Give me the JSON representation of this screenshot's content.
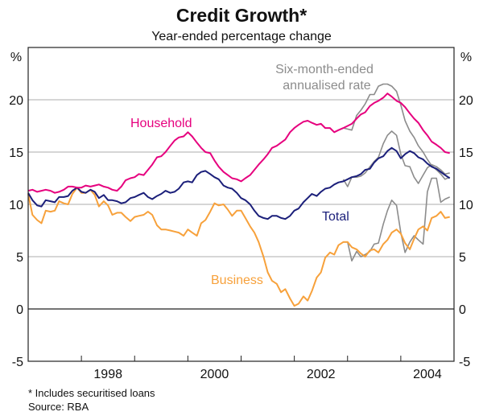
{
  "chart_data": {
    "type": "line",
    "title": "Credit Growth*",
    "subtitle": "Year-ended percentage change",
    "ylabel_left": "%",
    "ylabel_right": "%",
    "ylim": [
      -5,
      25
    ],
    "yticks": [
      -5,
      0,
      5,
      10,
      15,
      20
    ],
    "xlim": [
      1997.0,
      2005.0
    ],
    "xtick_marks": [
      1998,
      1999,
      2000,
      2001,
      2002,
      2003,
      2004
    ],
    "xtick_labels": [
      {
        "label": "1998",
        "center": 1998.5
      },
      {
        "label": "2000",
        "center": 2000.5
      },
      {
        "label": "2002",
        "center": 2002.5
      },
      {
        "label": "2004",
        "center": 2004.5
      }
    ],
    "grid": true,
    "footnote": "* Includes securitised loans",
    "source": "Source: RBA",
    "annotations": [
      {
        "text": "Household",
        "color": "#e6007e"
      },
      {
        "text": "Total",
        "color": "#1b1f7a"
      },
      {
        "text": "Business",
        "color": "#f7a13b"
      },
      {
        "text": "Six-month-ended",
        "color": "#8c8c8c"
      },
      {
        "text": "annualised rate",
        "color": "#8c8c8c"
      }
    ],
    "series": [
      {
        "name": "Household",
        "color": "#e6007e",
        "x": [
          1997.0,
          1997.08,
          1997.17,
          1997.25,
          1997.33,
          1997.42,
          1997.5,
          1997.58,
          1997.67,
          1997.75,
          1997.83,
          1997.92,
          1998.0,
          1998.08,
          1998.17,
          1998.25,
          1998.33,
          1998.42,
          1998.5,
          1998.58,
          1998.67,
          1998.75,
          1998.83,
          1998.92,
          1999.0,
          1999.08,
          1999.17,
          1999.25,
          1999.33,
          1999.42,
          1999.5,
          1999.58,
          1999.67,
          1999.75,
          1999.83,
          1999.92,
          2000.0,
          2000.08,
          2000.17,
          2000.25,
          2000.33,
          2000.42,
          2000.5,
          2000.58,
          2000.67,
          2000.75,
          2000.83,
          2000.92,
          2001.0,
          2001.08,
          2001.17,
          2001.25,
          2001.33,
          2001.42,
          2001.5,
          2001.58,
          2001.67,
          2001.75,
          2001.83,
          2001.92,
          2002.0,
          2002.08,
          2002.17,
          2002.25,
          2002.33,
          2002.42,
          2002.5,
          2002.58,
          2002.67,
          2002.75,
          2002.83,
          2002.92,
          2003.0,
          2003.08,
          2003.17,
          2003.25,
          2003.33,
          2003.42,
          2003.5,
          2003.58,
          2003.67,
          2003.75,
          2003.83,
          2003.92,
          2004.0,
          2004.08,
          2004.17,
          2004.25,
          2004.33,
          2004.42,
          2004.5,
          2004.58,
          2004.67,
          2004.75,
          2004.83,
          2004.92
        ],
        "values": [
          11.3,
          11.4,
          11.2,
          11.3,
          11.4,
          11.3,
          11.1,
          11.2,
          11.4,
          11.7,
          11.7,
          11.6,
          11.6,
          11.8,
          11.7,
          11.8,
          11.9,
          11.7,
          11.6,
          11.4,
          11.3,
          11.7,
          12.3,
          12.5,
          12.6,
          12.9,
          12.8,
          13.3,
          13.8,
          14.5,
          14.6,
          15.0,
          15.6,
          16.1,
          16.4,
          16.5,
          16.9,
          16.5,
          15.9,
          15.4,
          15.0,
          14.9,
          14.2,
          13.6,
          13.1,
          12.8,
          12.5,
          12.4,
          12.2,
          12.5,
          12.8,
          13.3,
          13.8,
          14.3,
          14.8,
          15.4,
          15.6,
          15.9,
          16.2,
          16.9,
          17.3,
          17.6,
          17.9,
          18.0,
          17.8,
          17.6,
          17.7,
          17.3,
          17.3,
          16.9,
          17.1,
          17.3,
          17.5,
          17.7,
          18.2,
          18.6,
          18.8,
          19.4,
          19.7,
          19.9,
          20.2,
          20.6,
          20.3,
          19.9,
          19.7,
          19.3,
          18.7,
          18.2,
          17.8,
          17.1,
          16.6,
          16.0,
          15.7,
          15.4,
          15.0,
          14.9
        ]
      },
      {
        "name": "Total",
        "color": "#1b1f7a",
        "x": [
          1997.0,
          1997.08,
          1997.17,
          1997.25,
          1997.33,
          1997.42,
          1997.5,
          1997.58,
          1997.67,
          1997.75,
          1997.83,
          1997.92,
          1998.0,
          1998.08,
          1998.17,
          1998.25,
          1998.33,
          1998.42,
          1998.5,
          1998.58,
          1998.67,
          1998.75,
          1998.83,
          1998.92,
          1999.0,
          1999.08,
          1999.17,
          1999.25,
          1999.33,
          1999.42,
          1999.5,
          1999.58,
          1999.67,
          1999.75,
          1999.83,
          1999.92,
          2000.0,
          2000.08,
          2000.17,
          2000.25,
          2000.33,
          2000.42,
          2000.5,
          2000.58,
          2000.67,
          2000.75,
          2000.83,
          2000.92,
          2001.0,
          2001.08,
          2001.17,
          2001.25,
          2001.33,
          2001.42,
          2001.5,
          2001.58,
          2001.67,
          2001.75,
          2001.83,
          2001.92,
          2002.0,
          2002.08,
          2002.17,
          2002.25,
          2002.33,
          2002.42,
          2002.5,
          2002.58,
          2002.67,
          2002.75,
          2002.83,
          2002.92,
          2003.0,
          2003.08,
          2003.17,
          2003.25,
          2003.33,
          2003.42,
          2003.5,
          2003.58,
          2003.67,
          2003.75,
          2003.83,
          2003.92,
          2004.0,
          2004.08,
          2004.17,
          2004.25,
          2004.33,
          2004.42,
          2004.5,
          2004.58,
          2004.67,
          2004.75,
          2004.83,
          2004.92
        ],
        "values": [
          11.1,
          10.4,
          9.9,
          9.8,
          10.4,
          10.3,
          10.2,
          10.7,
          10.7,
          10.8,
          11.3,
          11.6,
          11.2,
          11.1,
          11.4,
          11.2,
          10.6,
          10.9,
          10.4,
          10.4,
          10.3,
          10.1,
          10.2,
          10.6,
          10.7,
          10.9,
          11.1,
          10.7,
          10.5,
          10.8,
          11.0,
          11.3,
          11.1,
          11.2,
          11.5,
          12.1,
          12.2,
          12.1,
          12.8,
          13.1,
          13.2,
          12.9,
          12.6,
          12.4,
          11.8,
          11.6,
          11.5,
          11.1,
          10.6,
          10.4,
          10.0,
          9.4,
          8.9,
          8.7,
          8.6,
          8.9,
          8.9,
          8.7,
          8.6,
          8.9,
          9.4,
          9.6,
          10.2,
          10.6,
          11.0,
          10.8,
          11.2,
          11.5,
          11.6,
          11.9,
          12.1,
          12.2,
          12.4,
          12.6,
          12.7,
          12.9,
          13.3,
          13.4,
          14.0,
          14.4,
          14.6,
          15.1,
          15.4,
          15.1,
          14.4,
          14.8,
          15.1,
          14.9,
          14.5,
          14.3,
          13.9,
          13.6,
          13.4,
          13.1,
          12.8,
          12.5
        ]
      },
      {
        "name": "Business",
        "color": "#f7a13b",
        "x": [
          1997.0,
          1997.08,
          1997.17,
          1997.25,
          1997.33,
          1997.42,
          1997.5,
          1997.58,
          1997.67,
          1997.75,
          1997.83,
          1997.92,
          1998.0,
          1998.08,
          1998.17,
          1998.25,
          1998.33,
          1998.42,
          1998.5,
          1998.58,
          1998.67,
          1998.75,
          1998.83,
          1998.92,
          1999.0,
          1999.08,
          1999.17,
          1999.25,
          1999.33,
          1999.42,
          1999.5,
          1999.58,
          1999.67,
          1999.75,
          1999.83,
          1999.92,
          2000.0,
          2000.08,
          2000.17,
          2000.25,
          2000.33,
          2000.42,
          2000.5,
          2000.58,
          2000.67,
          2000.75,
          2000.83,
          2000.92,
          2001.0,
          2001.08,
          2001.17,
          2001.25,
          2001.33,
          2001.42,
          2001.5,
          2001.58,
          2001.67,
          2001.75,
          2001.83,
          2001.92,
          2002.0,
          2002.08,
          2002.17,
          2002.25,
          2002.33,
          2002.42,
          2002.5,
          2002.58,
          2002.67,
          2002.75,
          2002.83,
          2002.92,
          2003.0,
          2003.08,
          2003.17,
          2003.25,
          2003.33,
          2003.42,
          2003.5,
          2003.58,
          2003.67,
          2003.75,
          2003.83,
          2003.92,
          2004.0,
          2004.08,
          2004.17,
          2004.25,
          2004.33,
          2004.42,
          2004.5,
          2004.58,
          2004.67,
          2004.75,
          2004.83,
          2004.92
        ],
        "values": [
          11.0,
          9.0,
          8.5,
          8.2,
          9.4,
          9.3,
          9.4,
          10.3,
          10.1,
          10.0,
          11.0,
          11.6,
          11.1,
          11.1,
          11.4,
          10.9,
          9.8,
          10.3,
          9.9,
          9.0,
          9.2,
          9.2,
          8.8,
          8.4,
          8.8,
          8.9,
          9.0,
          9.3,
          9.0,
          8.0,
          7.6,
          7.6,
          7.5,
          7.4,
          7.3,
          7.0,
          7.6,
          7.3,
          7.0,
          8.2,
          8.5,
          9.3,
          10.1,
          9.9,
          10.0,
          9.5,
          8.9,
          9.4,
          9.4,
          8.7,
          7.9,
          7.3,
          6.4,
          5.0,
          3.5,
          2.7,
          2.4,
          1.6,
          1.9,
          1.0,
          0.3,
          0.5,
          1.2,
          0.8,
          1.7,
          3.0,
          3.5,
          4.9,
          5.4,
          5.2,
          6.1,
          6.4,
          6.4,
          5.9,
          5.7,
          5.3,
          5.0,
          5.6,
          5.7,
          5.4,
          6.2,
          6.6,
          7.3,
          7.6,
          7.2,
          6.3,
          5.7,
          6.7,
          7.6,
          7.9,
          7.5,
          8.7,
          8.9,
          9.3,
          8.7,
          8.8
        ]
      },
      {
        "name": "Household six-month-ended annualised",
        "color": "#8c8c8c",
        "x": [
          2002.92,
          2003.0,
          2003.08,
          2003.17,
          2003.25,
          2003.33,
          2003.42,
          2003.5,
          2003.58,
          2003.67,
          2003.75,
          2003.83,
          2003.92,
          2004.0,
          2004.08,
          2004.17,
          2004.25,
          2004.33,
          2004.42,
          2004.5,
          2004.58,
          2004.67,
          2004.75,
          2004.83,
          2004.92
        ],
        "values": [
          17.3,
          17.2,
          17.1,
          18.5,
          19.0,
          19.6,
          20.5,
          20.5,
          21.3,
          21.5,
          21.5,
          21.3,
          20.8,
          19.5,
          18.0,
          17.0,
          16.4,
          15.6,
          15.0,
          14.3,
          13.7,
          13.3,
          12.9,
          12.4,
          12.6
        ]
      },
      {
        "name": "Total six-month-ended annualised",
        "color": "#8c8c8c",
        "x": [
          2002.92,
          2003.0,
          2003.08,
          2003.17,
          2003.25,
          2003.33,
          2003.42,
          2003.5,
          2003.58,
          2003.67,
          2003.75,
          2003.83,
          2003.92,
          2004.0,
          2004.08,
          2004.17,
          2004.25,
          2004.33,
          2004.42,
          2004.5,
          2004.58,
          2004.67,
          2004.75,
          2004.83,
          2004.92
        ],
        "values": [
          12.4,
          11.7,
          12.6,
          12.6,
          12.7,
          13.0,
          13.6,
          14.1,
          14.5,
          15.8,
          16.6,
          17.0,
          16.6,
          14.8,
          13.7,
          13.6,
          12.6,
          12.0,
          12.8,
          13.5,
          13.8,
          13.6,
          13.3,
          12.9,
          13.0
        ]
      },
      {
        "name": "Business six-month-ended annualised",
        "color": "#8c8c8c",
        "x": [
          2002.92,
          2003.0,
          2003.08,
          2003.17,
          2003.25,
          2003.33,
          2003.42,
          2003.5,
          2003.58,
          2003.67,
          2003.75,
          2003.83,
          2003.92,
          2004.0,
          2004.08,
          2004.17,
          2004.25,
          2004.33,
          2004.42,
          2004.5,
          2004.58,
          2004.67,
          2004.75,
          2004.83,
          2004.92
        ],
        "values": [
          6.4,
          6.4,
          4.6,
          5.5,
          5.0,
          5.2,
          5.5,
          6.2,
          6.3,
          8.1,
          9.4,
          10.4,
          9.9,
          7.3,
          5.4,
          6.4,
          7.0,
          6.6,
          6.2,
          11.2,
          12.5,
          12.5,
          10.2,
          10.5,
          10.7
        ]
      }
    ]
  }
}
